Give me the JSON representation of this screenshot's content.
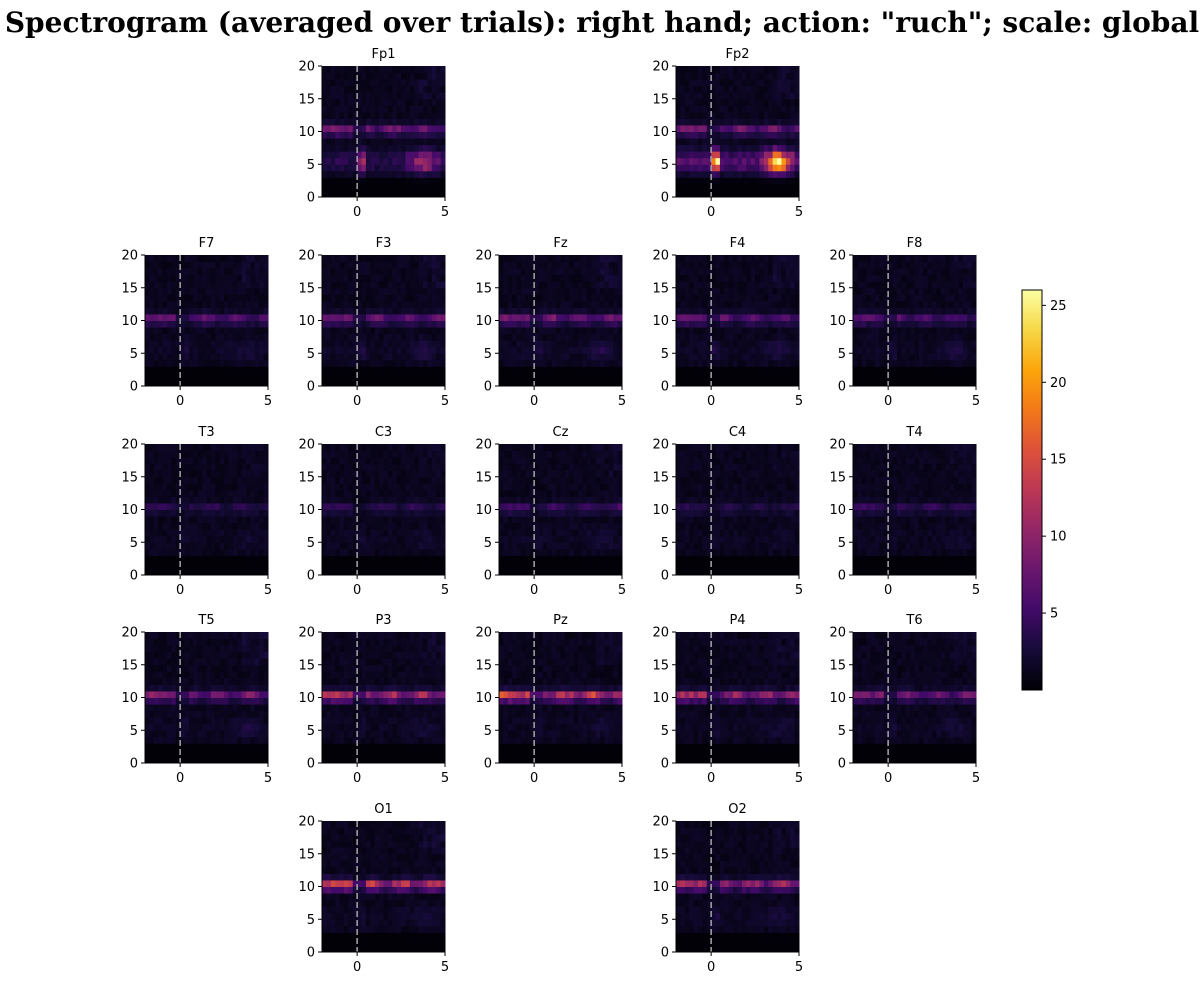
{
  "chart_data": {
    "type": "heatmap",
    "title": "Spectrogram (averaged over trials): right hand; action: \"ruch\"; scale: global",
    "colormap": "inferno",
    "xlim": [
      -2,
      5
    ],
    "ylim": [
      0,
      20
    ],
    "x_ticks": [
      "0",
      "5"
    ],
    "y_ticks": [
      "0",
      "5",
      "10",
      "15",
      "20"
    ],
    "event_marker_x": 0,
    "colorbar": {
      "min": 0,
      "max": 26,
      "ticks": [
        "5",
        "10",
        "15",
        "20",
        "25"
      ]
    },
    "channels": [
      {
        "name": "Fp1",
        "row": 0,
        "col": 1,
        "alpha": 0.28,
        "frontal": 0.45,
        "beta": 0.04
      },
      {
        "name": "Fp2",
        "row": 0,
        "col": 3,
        "alpha": 0.28,
        "frontal": 0.95,
        "beta": 0.04
      },
      {
        "name": "F7",
        "row": 1,
        "col": 0,
        "alpha": 0.24,
        "frontal": 0.06,
        "beta": 0.04
      },
      {
        "name": "F3",
        "row": 1,
        "col": 1,
        "alpha": 0.26,
        "frontal": 0.08,
        "beta": 0.05
      },
      {
        "name": "Fz",
        "row": 1,
        "col": 2,
        "alpha": 0.28,
        "frontal": 0.08,
        "beta": 0.05
      },
      {
        "name": "F4",
        "row": 1,
        "col": 3,
        "alpha": 0.24,
        "frontal": 0.07,
        "beta": 0.04
      },
      {
        "name": "F8",
        "row": 1,
        "col": 4,
        "alpha": 0.22,
        "frontal": 0.06,
        "beta": 0.03
      },
      {
        "name": "T3",
        "row": 2,
        "col": 0,
        "alpha": 0.12,
        "frontal": 0.03,
        "beta": 0.02
      },
      {
        "name": "C3",
        "row": 2,
        "col": 1,
        "alpha": 0.12,
        "frontal": 0.03,
        "beta": 0.02
      },
      {
        "name": "Cz",
        "row": 2,
        "col": 2,
        "alpha": 0.16,
        "frontal": 0.05,
        "beta": 0.03
      },
      {
        "name": "C4",
        "row": 2,
        "col": 3,
        "alpha": 0.1,
        "frontal": 0.02,
        "beta": 0.02
      },
      {
        "name": "T4",
        "row": 2,
        "col": 4,
        "alpha": 0.14,
        "frontal": 0.03,
        "beta": 0.02
      },
      {
        "name": "T5",
        "row": 3,
        "col": 0,
        "alpha": 0.32,
        "frontal": 0.06,
        "beta": 0.04
      },
      {
        "name": "P3",
        "row": 3,
        "col": 1,
        "alpha": 0.45,
        "frontal": 0.04,
        "beta": 0.03
      },
      {
        "name": "Pz",
        "row": 3,
        "col": 2,
        "alpha": 0.52,
        "frontal": 0.04,
        "beta": 0.03
      },
      {
        "name": "P4",
        "row": 3,
        "col": 3,
        "alpha": 0.4,
        "frontal": 0.05,
        "beta": 0.03
      },
      {
        "name": "T6",
        "row": 3,
        "col": 4,
        "alpha": 0.28,
        "frontal": 0.05,
        "beta": 0.03
      },
      {
        "name": "O1",
        "row": 4,
        "col": 1,
        "alpha": 0.5,
        "frontal": 0.05,
        "beta": 0.04
      },
      {
        "name": "O2",
        "row": 4,
        "col": 3,
        "alpha": 0.4,
        "frontal": 0.06,
        "beta": 0.04
      }
    ]
  }
}
